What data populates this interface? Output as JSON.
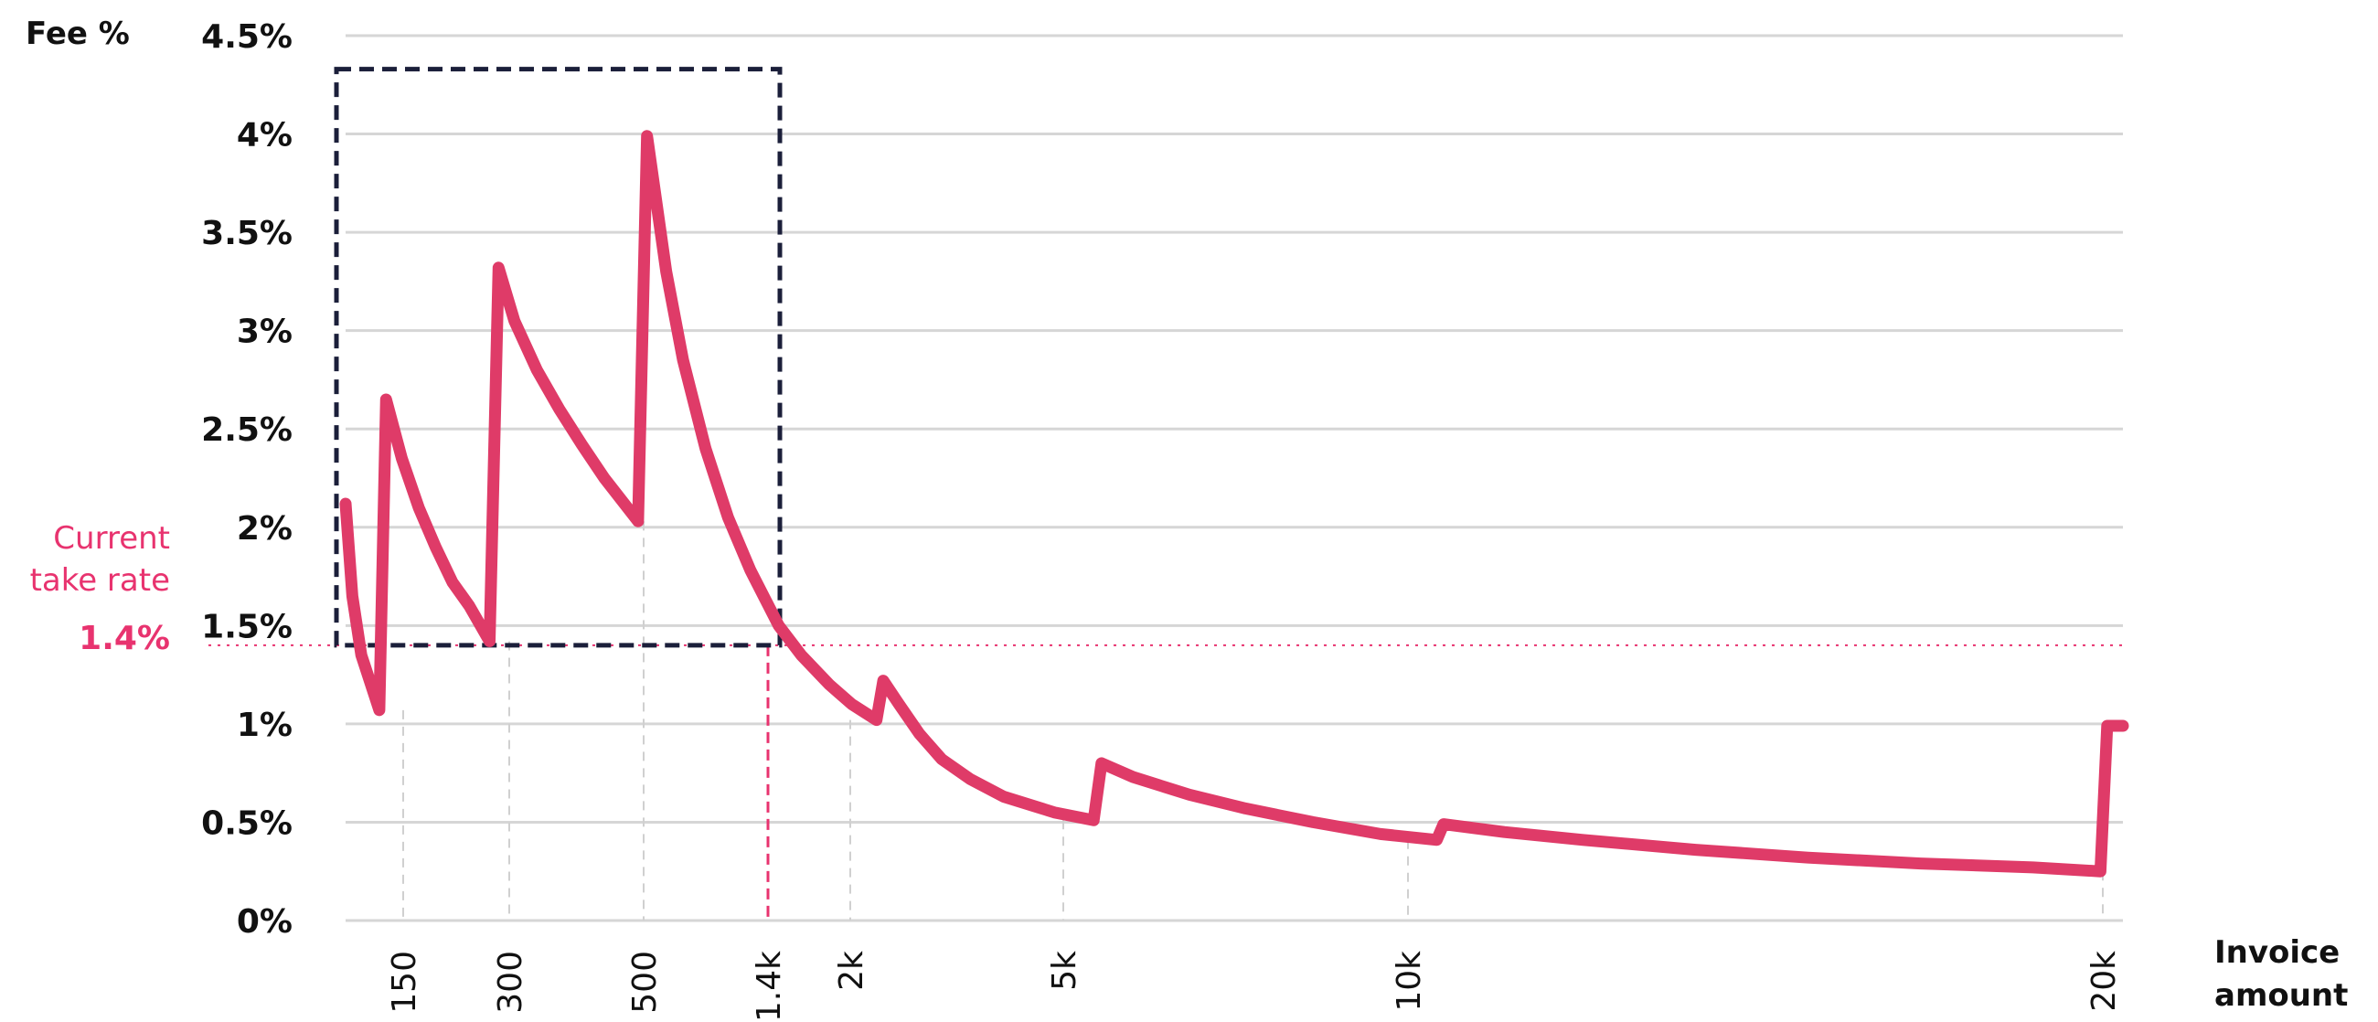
{
  "chart_data": {
    "type": "line",
    "title": "",
    "ylabel": "Fee %",
    "xlabel_lines": [
      "Invoice",
      "amount"
    ],
    "ylim": [
      0,
      4.5
    ],
    "y_ticks": [
      0,
      0.5,
      1,
      1.5,
      2,
      2.5,
      3,
      3.5,
      4,
      4.5
    ],
    "y_tick_labels": [
      "0%",
      "0.5%",
      "1%",
      "1.5%",
      "2%",
      "2.5%",
      "3%",
      "3.5%",
      "4%",
      "4.5%"
    ],
    "x_ticks": [
      {
        "label": "150",
        "highlight": false
      },
      {
        "label": "300",
        "highlight": false
      },
      {
        "label": "500",
        "highlight": false
      },
      {
        "label": "1.4k",
        "highlight": true
      },
      {
        "label": "2k",
        "highlight": false
      },
      {
        "label": "5k",
        "highlight": false
      },
      {
        "label": "10k",
        "highlight": false
      },
      {
        "label": "20k",
        "highlight": false
      }
    ],
    "grid": true,
    "series": [
      {
        "color": "#df3b68",
        "points": [
          [
            0,
            2.12
          ],
          [
            0.06,
            1.65
          ],
          [
            0.14,
            1.35
          ],
          [
            0.3,
            1.07
          ],
          [
            0.36,
            2.65
          ],
          [
            0.5,
            2.35
          ],
          [
            0.65,
            2.1
          ],
          [
            0.8,
            1.9
          ],
          [
            0.95,
            1.72
          ],
          [
            1.1,
            1.6
          ],
          [
            1.28,
            1.42
          ],
          [
            1.36,
            3.32
          ],
          [
            1.5,
            3.05
          ],
          [
            1.7,
            2.8
          ],
          [
            1.9,
            2.6
          ],
          [
            2.1,
            2.42
          ],
          [
            2.3,
            2.25
          ],
          [
            2.6,
            2.03
          ],
          [
            2.68,
            3.99
          ],
          [
            2.85,
            3.3
          ],
          [
            3.0,
            2.85
          ],
          [
            3.2,
            2.4
          ],
          [
            3.4,
            2.05
          ],
          [
            3.6,
            1.78
          ],
          [
            3.85,
            1.5
          ],
          [
            4.05,
            1.35
          ],
          [
            4.3,
            1.2
          ],
          [
            4.5,
            1.1
          ],
          [
            4.72,
            1.02
          ],
          [
            4.78,
            1.22
          ],
          [
            4.92,
            1.1
          ],
          [
            5.1,
            0.95
          ],
          [
            5.3,
            0.82
          ],
          [
            5.55,
            0.72
          ],
          [
            5.85,
            0.63
          ],
          [
            6.3,
            0.55
          ],
          [
            6.65,
            0.51
          ],
          [
            6.72,
            0.8
          ],
          [
            7.0,
            0.73
          ],
          [
            7.5,
            0.64
          ],
          [
            8.0,
            0.57
          ],
          [
            8.6,
            0.5
          ],
          [
            9.2,
            0.44
          ],
          [
            9.7,
            0.41
          ],
          [
            9.76,
            0.49
          ],
          [
            10.3,
            0.45
          ],
          [
            11.0,
            0.41
          ],
          [
            12.0,
            0.36
          ],
          [
            13.0,
            0.32
          ],
          [
            14.0,
            0.29
          ],
          [
            15.0,
            0.27
          ],
          [
            15.6,
            0.25
          ],
          [
            15.66,
            0.99
          ],
          [
            15.8,
            0.99
          ]
        ]
      }
    ],
    "reference_line": {
      "value": 1.4,
      "label_lines": [
        "Current",
        "take rate"
      ],
      "value_label": "1.4%",
      "color": "#e8336f"
    },
    "highlight_box": {
      "x_from": 0,
      "x_to": 3.85,
      "y_from": 1.4,
      "y_to": 4.33,
      "style": "dashed",
      "color": "#1b1f3a"
    }
  },
  "colors": {
    "line": "#df3b68",
    "accent": "#e8336f",
    "grid": "#d6d6d6",
    "guide": "#d0d0d0",
    "box": "#1b1f3a",
    "text": "#111111"
  }
}
